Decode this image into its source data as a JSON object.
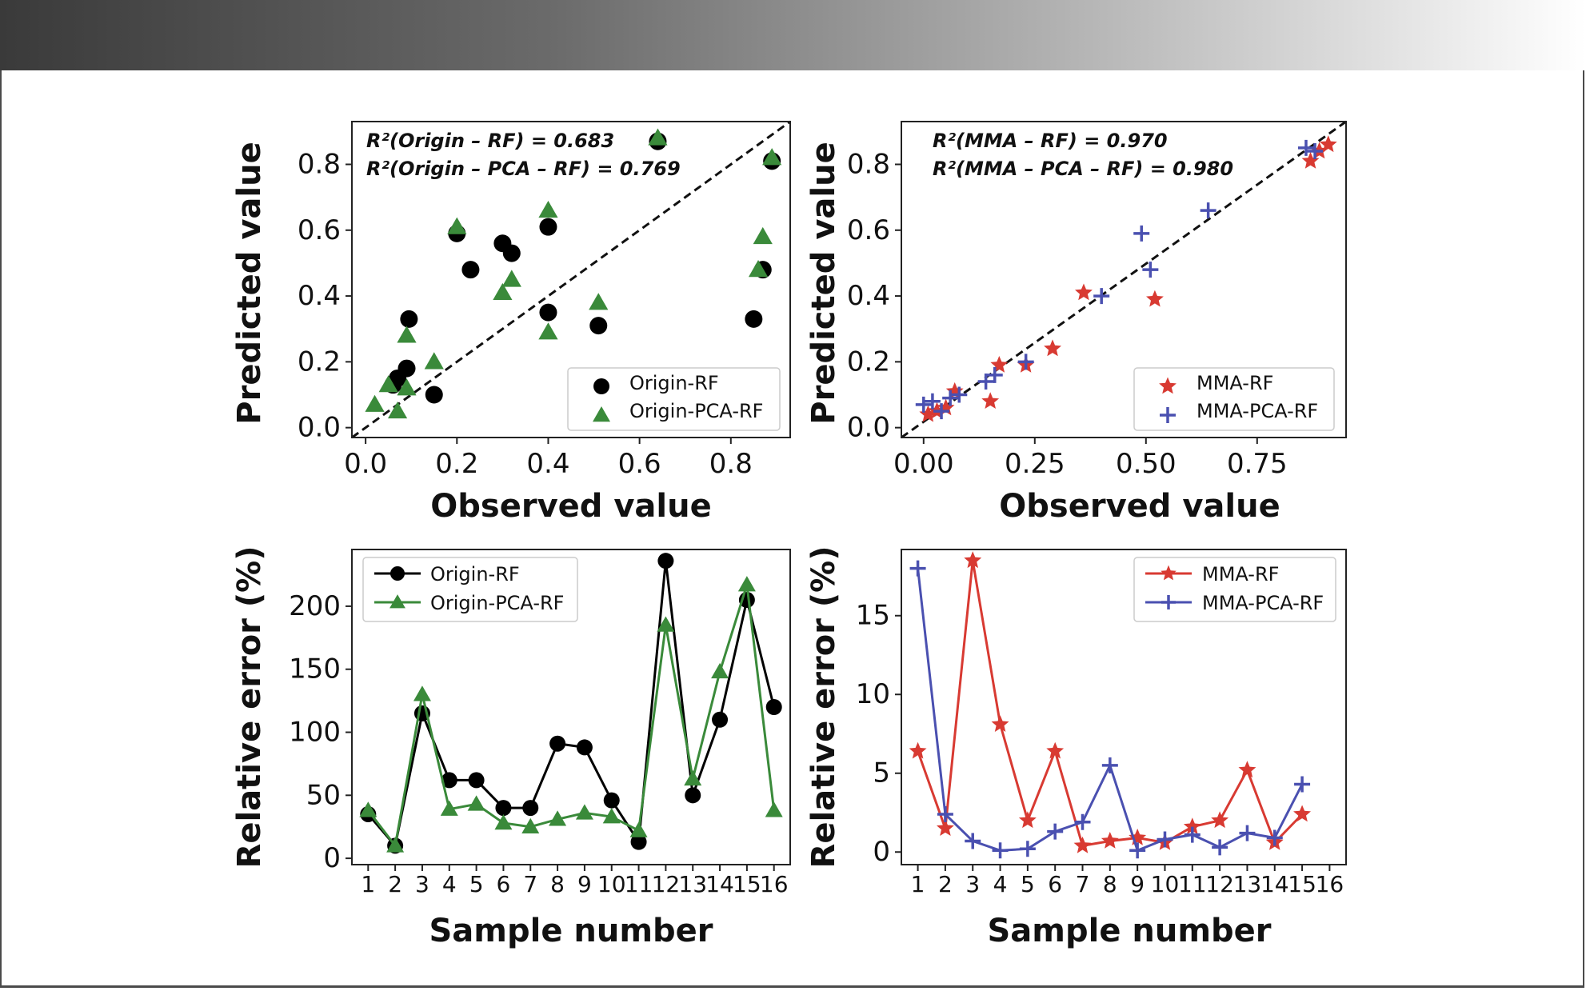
{
  "chart_data": [
    {
      "type": "scatter",
      "id": "p1",
      "xlabel": "Observed value",
      "ylabel": "Predicted value",
      "xlim": [
        -0.03,
        0.93
      ],
      "ylim": [
        -0.03,
        0.93
      ],
      "xticks": [
        0.0,
        0.2,
        0.4,
        0.6,
        0.8
      ],
      "xtick_labels": [
        "0.0",
        "0.2",
        "0.4",
        "0.6",
        "0.8"
      ],
      "yticks": [
        0.0,
        0.2,
        0.4,
        0.6,
        0.8
      ],
      "ytick_labels": [
        "0.0",
        "0.2",
        "0.4",
        "0.6",
        "0.8"
      ],
      "annotations": [
        "R²(Origin – RF) = 0.683",
        "R²(Origin – PCA – RF) = 0.769"
      ],
      "legend_position": "lower-right",
      "diagonal": true,
      "series": [
        {
          "name": "Origin-RF",
          "marker": "circle",
          "color": "#000000",
          "x": [
            0.06,
            0.07,
            0.09,
            0.095,
            0.15,
            0.2,
            0.23,
            0.3,
            0.32,
            0.4,
            0.4,
            0.51,
            0.64,
            0.85,
            0.87,
            0.89
          ],
          "y": [
            0.13,
            0.15,
            0.18,
            0.33,
            0.1,
            0.59,
            0.48,
            0.56,
            0.53,
            0.61,
            0.35,
            0.31,
            0.87,
            0.33,
            0.48,
            0.81
          ]
        },
        {
          "name": "Origin-PCA-RF",
          "marker": "triangle",
          "color": "#3a8a3a",
          "x": [
            0.02,
            0.05,
            0.07,
            0.09,
            0.09,
            0.15,
            0.2,
            0.3,
            0.32,
            0.4,
            0.4,
            0.51,
            0.64,
            0.86,
            0.87,
            0.89
          ],
          "y": [
            0.07,
            0.13,
            0.05,
            0.12,
            0.28,
            0.2,
            0.61,
            0.41,
            0.45,
            0.66,
            0.29,
            0.38,
            0.88,
            0.48,
            0.58,
            0.82
          ]
        }
      ]
    },
    {
      "type": "scatter",
      "id": "p2",
      "xlabel": "Observed value",
      "ylabel": "Predicted value",
      "xlim": [
        -0.05,
        0.95
      ],
      "ylim": [
        -0.03,
        0.93
      ],
      "xticks": [
        0.0,
        0.25,
        0.5,
        0.75
      ],
      "xtick_labels": [
        "0.00",
        "0.25",
        "0.50",
        "0.75"
      ],
      "yticks": [
        0.0,
        0.2,
        0.4,
        0.6,
        0.8
      ],
      "ytick_labels": [
        "0.0",
        "0.2",
        "0.4",
        "0.6",
        "0.8"
      ],
      "annotations": [
        "R²(MMA – RF) = 0.970",
        "R²(MMA – PCA – RF) = 0.980"
      ],
      "legend_position": "lower-right",
      "diagonal": true,
      "series": [
        {
          "name": "MMA-RF",
          "marker": "star",
          "color": "#d83a32",
          "x": [
            0.01,
            0.03,
            0.05,
            0.07,
            0.15,
            0.17,
            0.23,
            0.29,
            0.36,
            0.52,
            0.87,
            0.89,
            0.91
          ],
          "y": [
            0.04,
            0.05,
            0.06,
            0.11,
            0.08,
            0.19,
            0.19,
            0.24,
            0.41,
            0.39,
            0.81,
            0.84,
            0.86
          ]
        },
        {
          "name": "MMA-PCA-RF",
          "marker": "plus",
          "color": "#4a50b0",
          "x": [
            0.0,
            0.02,
            0.04,
            0.06,
            0.08,
            0.14,
            0.16,
            0.23,
            0.4,
            0.49,
            0.51,
            0.64,
            0.86,
            0.88
          ],
          "y": [
            0.07,
            0.08,
            0.05,
            0.09,
            0.1,
            0.14,
            0.16,
            0.2,
            0.4,
            0.59,
            0.48,
            0.66,
            0.85,
            0.84
          ]
        }
      ]
    },
    {
      "type": "line",
      "id": "p3",
      "xlabel": "Sample number",
      "ylabel": "Relative error (%)",
      "xlim": [
        0.4,
        16.6
      ],
      "ylim": [
        -5,
        245
      ],
      "xticks": [
        1,
        2,
        3,
        4,
        5,
        6,
        7,
        8,
        9,
        10,
        11,
        12,
        13,
        14,
        15,
        16
      ],
      "xtick_labels": [
        "1",
        "2",
        "3",
        "4",
        "5",
        "6",
        "7",
        "8",
        "9",
        "10",
        "11",
        "12",
        "13",
        "14",
        "15",
        "16"
      ],
      "yticks": [
        0,
        50,
        100,
        150,
        200
      ],
      "ytick_labels": [
        "0",
        "50",
        "100",
        "150",
        "200"
      ],
      "legend_position": "top-left",
      "series": [
        {
          "name": "Origin-RF",
          "marker": "circle",
          "color": "#000000",
          "x": [
            1,
            2,
            3,
            4,
            5,
            6,
            7,
            8,
            9,
            10,
            11,
            12,
            13,
            14,
            15,
            16
          ],
          "values": [
            35,
            10,
            115,
            62,
            62,
            40,
            40,
            91,
            88,
            46,
            13,
            236,
            50,
            110,
            205,
            120
          ]
        },
        {
          "name": "Origin-PCA-RF",
          "marker": "triangle",
          "color": "#3a8a3a",
          "x": [
            1,
            2,
            3,
            4,
            5,
            6,
            7,
            8,
            9,
            10,
            11,
            12,
            13,
            14,
            15,
            16
          ],
          "values": [
            38,
            10,
            130,
            39,
            43,
            28,
            25,
            31,
            36,
            33,
            22,
            185,
            63,
            148,
            217,
            38
          ]
        }
      ]
    },
    {
      "type": "line",
      "id": "p4",
      "xlabel": "Sample number",
      "ylabel": "Relative error (%)",
      "xlim": [
        0.4,
        16.6
      ],
      "ylim": [
        -0.8,
        19.2
      ],
      "xticks": [
        1,
        2,
        3,
        4,
        5,
        6,
        7,
        8,
        9,
        10,
        11,
        12,
        13,
        14,
        15,
        16
      ],
      "xtick_labels": [
        "1",
        "2",
        "3",
        "4",
        "5",
        "6",
        "7",
        "8",
        "9",
        "10",
        "11",
        "12",
        "13",
        "14",
        "15",
        "16"
      ],
      "yticks": [
        0,
        5,
        10,
        15
      ],
      "ytick_labels": [
        "0",
        "5",
        "10",
        "15"
      ],
      "legend_position": "top-right",
      "series": [
        {
          "name": "MMA-RF",
          "marker": "star",
          "color": "#d83a32",
          "x": [
            1,
            2,
            3,
            4,
            5,
            6,
            7,
            8,
            9,
            10,
            11,
            12,
            13,
            14,
            15
          ],
          "values": [
            6.4,
            1.5,
            18.5,
            8.1,
            2.0,
            6.4,
            0.4,
            0.7,
            0.9,
            0.6,
            1.6,
            2.0,
            5.2,
            0.6,
            2.4
          ]
        },
        {
          "name": "MMA-PCA-RF",
          "marker": "plus",
          "color": "#4a50b0",
          "x": [
            1,
            2,
            3,
            4,
            5,
            6,
            7,
            8,
            9,
            10,
            11,
            12,
            13,
            14,
            15
          ],
          "values": [
            18.0,
            2.4,
            0.7,
            0.1,
            0.2,
            1.3,
            1.9,
            5.5,
            0.1,
            0.8,
            1.1,
            0.3,
            1.2,
            0.9,
            4.3
          ]
        }
      ]
    }
  ]
}
